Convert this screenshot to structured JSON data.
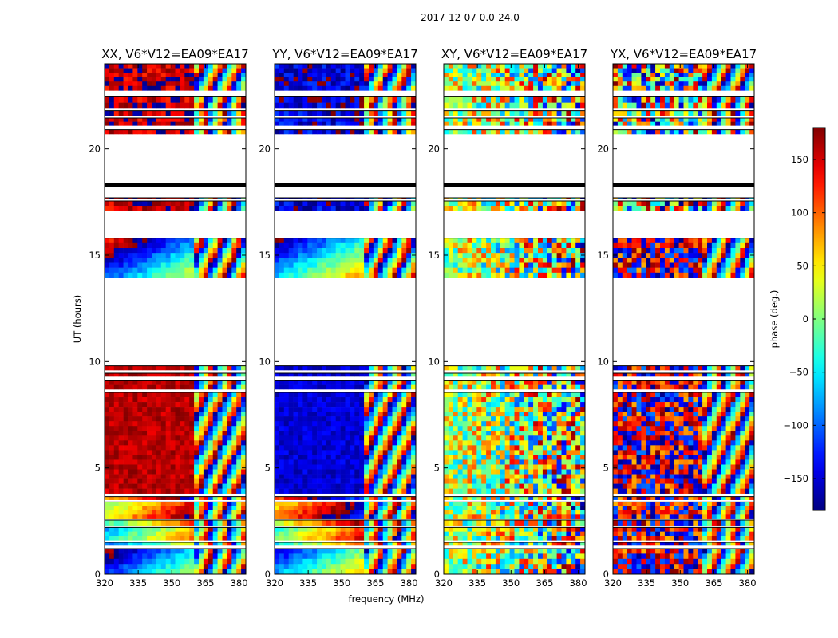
{
  "chart_data": {
    "type": "heatmap",
    "suptitle": "2017-12-07 0.0-24.0",
    "xlabel": "frequency (MHz)",
    "ylabel": "UT (hours)",
    "x_range": [
      320,
      383
    ],
    "y_range": [
      0,
      24
    ],
    "x_ticks": [
      "320",
      "335",
      "350",
      "365",
      "380"
    ],
    "y_ticks": [
      "0",
      "5",
      "10",
      "15",
      "20"
    ],
    "panels": [
      {
        "title": "XX, V6*V12=EA09*EA17",
        "pol": "XX",
        "phase_low_freq_deg": 160,
        "phase_slope": "strong"
      },
      {
        "title": "YY, V6*V12=EA09*EA17",
        "pol": "YY",
        "phase_low_freq_deg": -150,
        "phase_slope": "strong"
      },
      {
        "title": "XY, V6*V12=EA09*EA17",
        "pol": "XY",
        "phase_low_freq_deg": 20,
        "phase_slope": "noise"
      },
      {
        "title": "YX, V6*V12=EA09*EA17",
        "pol": "YX",
        "phase_low_freq_deg": 170,
        "phase_slope": "moderate"
      }
    ],
    "colorbar": {
      "label": "phase (deg.)",
      "range": [
        -180,
        180
      ],
      "ticks": [
        "150",
        "100",
        "50",
        "0",
        "−50",
        "−100",
        "−150"
      ],
      "colormap": "jet"
    },
    "data_blocks_ut_hours": [
      [
        0.0,
        1.2
      ],
      [
        1.35,
        1.5
      ],
      [
        1.6,
        2.2
      ],
      [
        2.3,
        2.55
      ],
      [
        2.6,
        3.4
      ],
      [
        3.5,
        3.65
      ],
      [
        3.8,
        8.55
      ],
      [
        8.7,
        9.1
      ],
      [
        9.3,
        9.45
      ],
      [
        9.6,
        9.8
      ],
      [
        13.95,
        15.8
      ],
      [
        17.1,
        17.55
      ],
      [
        17.65,
        17.7
      ],
      [
        20.7,
        20.9
      ],
      [
        21.1,
        21.45
      ],
      [
        21.55,
        21.8
      ],
      [
        21.9,
        22.45
      ],
      [
        22.75,
        24.0
      ]
    ],
    "flag_lines_ut_hours": [
      18.3
    ]
  }
}
